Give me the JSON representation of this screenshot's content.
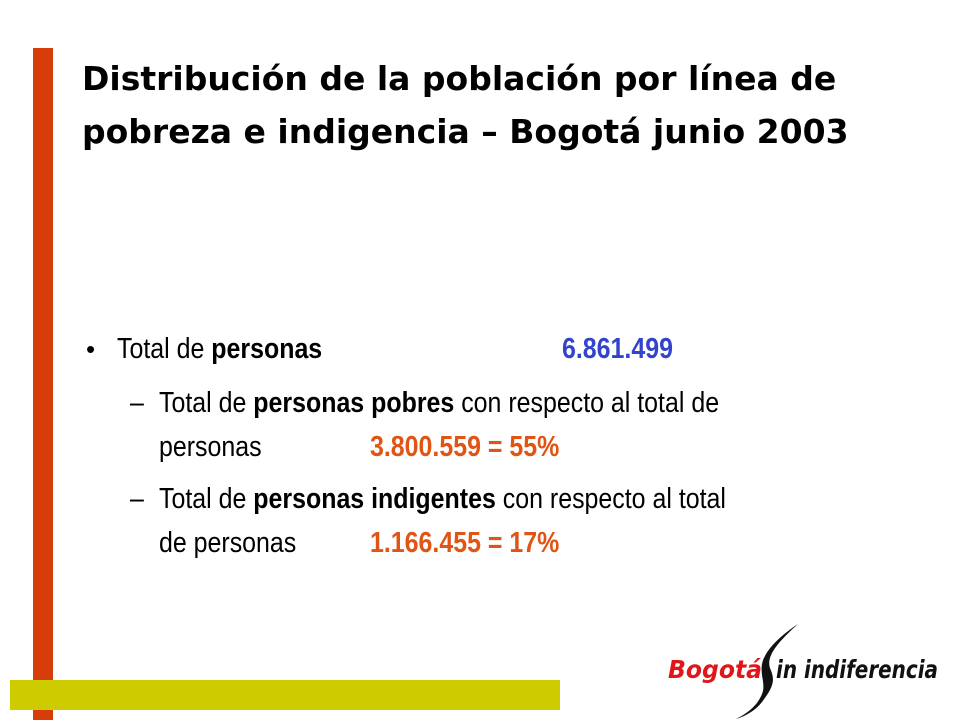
{
  "title": "Distribución de la población por línea de pobreza e indigencia – Bogotá junio 2003",
  "bullet_main": {
    "marker": "•",
    "prefix": "Total de ",
    "bold": "personas",
    "value": "6.861.499"
  },
  "sub_bullets": [
    {
      "marker": "–",
      "prefix": "Total de ",
      "bold": "personas pobres",
      "suffix": " con respecto al total de",
      "line2": "personas",
      "value": "3.800.559 = 55%"
    },
    {
      "marker": "–",
      "prefix": "Total de ",
      "bold": "personas indigentes",
      "suffix": " con respecto al total",
      "line2": "de personas",
      "value": "1.166.455 = 17%"
    }
  ],
  "logo": {
    "part1": "Bogotá",
    "part2": "in indiferencia",
    "color": "#e0161b"
  },
  "colors": {
    "accent_bar": "#d63d0a",
    "base_bar": "#cccc00",
    "value_blue": "#3344cc",
    "value_orange": "#e05514"
  }
}
